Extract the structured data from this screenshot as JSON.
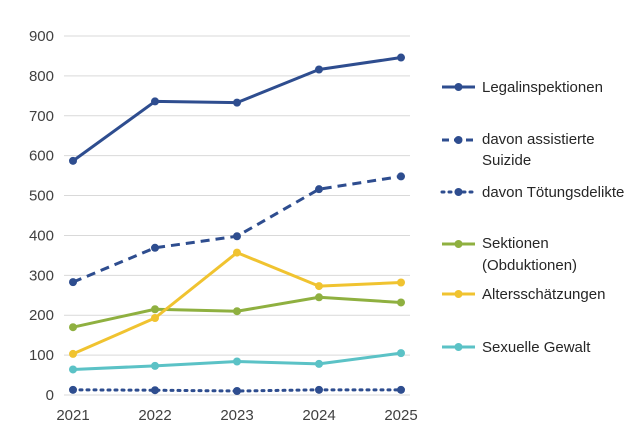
{
  "chart_data": {
    "type": "line",
    "title": "",
    "xlabel": "",
    "ylabel": "",
    "x": [
      "2021",
      "2022",
      "2023",
      "2024",
      "2025"
    ],
    "ylim": [
      0,
      900
    ],
    "yticks": [
      "0",
      "100",
      "200",
      "300",
      "400",
      "500",
      "600",
      "700",
      "800",
      "900"
    ],
    "grid": "horizontal",
    "legend": "right",
    "series": [
      {
        "name": "Legalinspektionen",
        "values": [
          587,
          736,
          733,
          816,
          846
        ],
        "color": "#2e4d8f",
        "style": "solid"
      },
      {
        "name": "davon assistierte Suizide",
        "values": [
          283,
          369,
          398,
          516,
          548
        ],
        "color": "#2e4d8f",
        "style": "dashed"
      },
      {
        "name": "davon Tötungsdelikte",
        "values": [
          13,
          12,
          10,
          13,
          13
        ],
        "color": "#2e4d8f",
        "style": "dotted"
      },
      {
        "name": "Sektionen (Obduktionen)",
        "values": [
          170,
          215,
          210,
          245,
          232
        ],
        "color": "#8fb040",
        "style": "solid"
      },
      {
        "name": "Altersschätzungen",
        "values": [
          103,
          193,
          357,
          273,
          282
        ],
        "color": "#f0c330",
        "style": "solid"
      },
      {
        "name": "Sexuelle Gewalt",
        "values": [
          64,
          73,
          84,
          78,
          105
        ],
        "color": "#5bc2c6",
        "style": "solid"
      }
    ]
  }
}
